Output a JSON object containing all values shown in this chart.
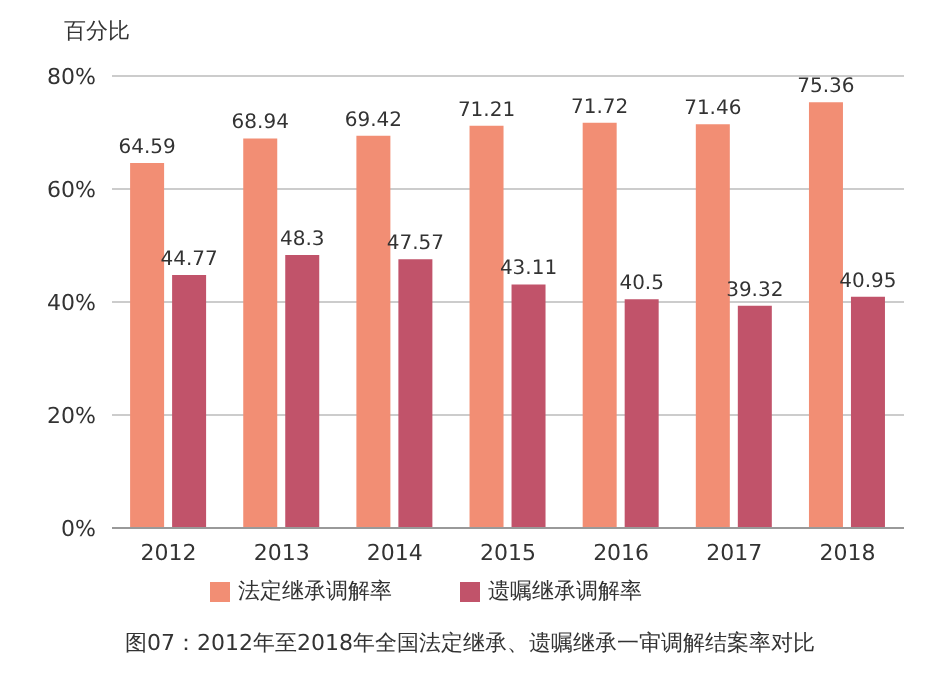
{
  "chart_data": {
    "type": "bar",
    "ylabel": "百分比",
    "categories": [
      "2012",
      "2013",
      "2014",
      "2015",
      "2016",
      "2017",
      "2018"
    ],
    "series": [
      {
        "name": "法定继承调解率",
        "color": "#f28e74",
        "values": [
          64.59,
          68.94,
          69.42,
          71.21,
          71.72,
          71.46,
          75.36
        ]
      },
      {
        "name": "遗嘱继承调解率",
        "color": "#c1536a",
        "values": [
          44.77,
          48.3,
          47.57,
          43.11,
          40.5,
          39.32,
          40.95
        ]
      }
    ],
    "ylim": [
      0,
      80
    ],
    "yticks": [
      {
        "value": 0,
        "label": "0%"
      },
      {
        "value": 20,
        "label": "20%"
      },
      {
        "value": 40,
        "label": "40%"
      },
      {
        "value": 60,
        "label": "60%"
      },
      {
        "value": 80,
        "label": "80%"
      }
    ],
    "grid": "y",
    "legend": "bottom",
    "data_labels": true,
    "annotations": [
      "图07：2012年至2018年全国法定继承、遗嘱继承一审调解结案率对比"
    ]
  }
}
